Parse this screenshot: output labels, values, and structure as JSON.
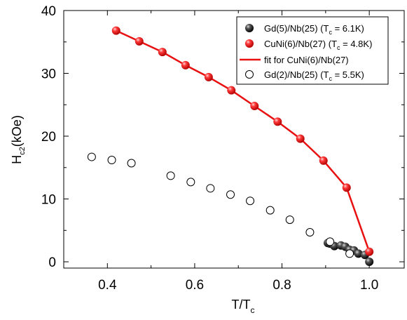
{
  "chart_data": {
    "type": "scatter",
    "title": "",
    "xlabel": {
      "main": "T/T",
      "sub": "c"
    },
    "ylabel": {
      "main": "H",
      "sub": "c2",
      "suffix": "(kOe)"
    },
    "xlim": [
      0.3,
      1.08
    ],
    "ylim": [
      -1,
      40
    ],
    "xticks": [
      0.4,
      0.6,
      0.8,
      1.0
    ],
    "xtick_labels": [
      "0.4",
      "0.6",
      "0.8",
      "1.0"
    ],
    "yticks": [
      0,
      10,
      20,
      30,
      40
    ],
    "ytick_labels": [
      "0",
      "10",
      "20",
      "30",
      "40"
    ],
    "grid": false,
    "legend_position": "top-right",
    "series": [
      {
        "name": "Gd(5)/Nb(25) (T",
        "name_sub": "c",
        "name_suffix": " = 6.1K)",
        "kind": "marker",
        "style": "filled-black",
        "x": [
          0.905,
          0.91,
          0.92,
          0.935,
          0.945,
          0.955,
          0.965,
          0.975,
          0.99,
          1.0
        ],
        "y": [
          3.0,
          2.9,
          2.5,
          2.6,
          2.4,
          1.9,
          1.8,
          1.3,
          1.1,
          0.0
        ]
      },
      {
        "name": "CuNi(6)/Nb(27) (T",
        "name_sub": "c",
        "name_suffix": " = 4.8K)",
        "kind": "marker",
        "style": "filled-red",
        "x": [
          0.42,
          0.473,
          0.526,
          0.579,
          0.632,
          0.684,
          0.737,
          0.79,
          0.842,
          0.895,
          0.948,
          1.0
        ],
        "y": [
          36.8,
          35.1,
          33.4,
          31.3,
          29.4,
          27.3,
          24.8,
          22.3,
          19.6,
          16.1,
          11.8,
          1.6
        ]
      },
      {
        "name": "fit for CuNi(6)/Nb(27)",
        "kind": "line",
        "style": "red-line",
        "x": [
          0.42,
          0.473,
          0.526,
          0.579,
          0.632,
          0.684,
          0.737,
          0.79,
          0.842,
          0.895,
          0.948,
          1.0
        ],
        "y": [
          36.8,
          35.1,
          33.4,
          31.3,
          29.4,
          27.3,
          24.8,
          22.3,
          19.6,
          16.1,
          11.8,
          1.6
        ]
      },
      {
        "name": "Gd(2)/Nb(25) (T",
        "name_sub": "c",
        "name_suffix": " = 5.5K)",
        "kind": "marker",
        "style": "open-black",
        "x": [
          0.364,
          0.41,
          0.455,
          0.545,
          0.591,
          0.636,
          0.682,
          0.727,
          0.773,
          0.818,
          0.864,
          0.91,
          0.955
        ],
        "y": [
          16.7,
          16.2,
          15.7,
          13.7,
          12.7,
          11.7,
          10.7,
          9.7,
          8.2,
          6.7,
          4.7,
          3.2,
          1.3
        ]
      }
    ],
    "colors": {
      "red": "#e81010",
      "black": "#000000"
    }
  }
}
